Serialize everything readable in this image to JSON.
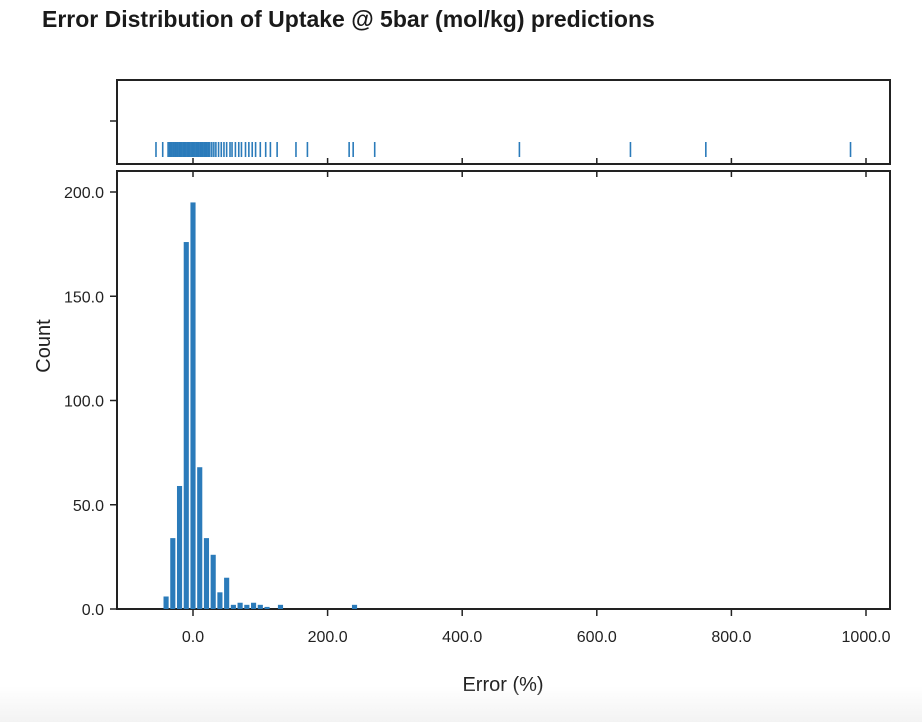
{
  "chart_data": {
    "type": "bar",
    "title": "Error Distribution of Uptake @ 5bar (mol/kg) predictions",
    "xlabel": "Error (%)",
    "ylabel": "Count",
    "xlim": [
      -100,
      1000
    ],
    "ylim": [
      0,
      200
    ],
    "xticks": [
      "0.0",
      "200.0",
      "400.0",
      "600.0",
      "800.0",
      "1000.0"
    ],
    "yticks": [
      "0.0",
      "50.0",
      "100.0",
      "150.0",
      "200.0"
    ],
    "bin_width": 10,
    "color": "#2b7bba",
    "bins": [
      {
        "x": -40,
        "count": 6
      },
      {
        "x": -30,
        "count": 34
      },
      {
        "x": -20,
        "count": 59
      },
      {
        "x": -10,
        "count": 176
      },
      {
        "x": 0,
        "count": 195
      },
      {
        "x": 10,
        "count": 68
      },
      {
        "x": 20,
        "count": 34
      },
      {
        "x": 30,
        "count": 26
      },
      {
        "x": 40,
        "count": 8
      },
      {
        "x": 50,
        "count": 15
      },
      {
        "x": 60,
        "count": 2
      },
      {
        "x": 70,
        "count": 3
      },
      {
        "x": 80,
        "count": 2
      },
      {
        "x": 90,
        "count": 3
      },
      {
        "x": 100,
        "count": 2
      },
      {
        "x": 110,
        "count": 1
      },
      {
        "x": 130,
        "count": 2
      },
      {
        "x": 240,
        "count": 2
      }
    ],
    "rug_points": [
      -55,
      -45,
      -37,
      -35,
      -33,
      -31,
      -29,
      -27,
      -25,
      -23,
      -21,
      -19,
      -17,
      -15,
      -13,
      -11,
      -9,
      -7,
      -5,
      -3,
      -1,
      1,
      3,
      5,
      7,
      9,
      11,
      13,
      15,
      17,
      19,
      21,
      23,
      25,
      28,
      31,
      34,
      38,
      42,
      46,
      50,
      55,
      58,
      63,
      68,
      72,
      78,
      83,
      88,
      93,
      100,
      108,
      115,
      125,
      153,
      170,
      232,
      238,
      270,
      485,
      650,
      762,
      977
    ]
  }
}
